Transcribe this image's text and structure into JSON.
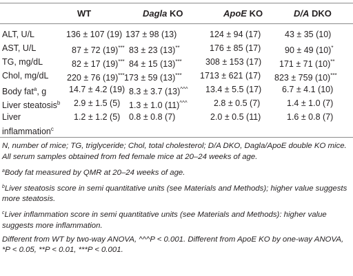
{
  "table": {
    "headers": {
      "wt": "WT",
      "dagla_name": "Dagla",
      "dagla_suffix": " KO",
      "apoe_name": "ApoE",
      "apoe_suffix": " KO",
      "dko_name": "D/A",
      "dko_suffix": " DKO"
    },
    "rows": [
      {
        "label": "ALT, U/L",
        "label_sup": "",
        "wt": "136 ± 107 (19)",
        "wt_sup": "",
        "dagla": "137 ± 98 (13)",
        "dagla_sup": "",
        "apoe": "124 ± 94 (17)",
        "apoe_sup": "",
        "dko": "43 ± 35 (10)",
        "dko_sup": ""
      },
      {
        "label": "AST, U/L",
        "label_sup": "",
        "wt": "87 ± 72 (19)",
        "wt_sup": "***",
        "dagla": "83 ± 23 (13)",
        "dagla_sup": "**",
        "apoe": "176 ± 85 (17)",
        "apoe_sup": "",
        "dko": "90 ± 49 (10)",
        "dko_sup": "*"
      },
      {
        "label": "TG, mg/dL",
        "label_sup": "",
        "wt": "82 ± 17 (19)",
        "wt_sup": "***",
        "dagla": "84 ± 15 (13)",
        "dagla_sup": "***",
        "apoe": "308 ± 153 (17)",
        "apoe_sup": "",
        "dko": "171 ± 71 (10)",
        "dko_sup": "**"
      },
      {
        "label": "Chol, mg/dL",
        "label_sup": "",
        "wt": "220 ± 76 (19)",
        "wt_sup": "***",
        "dagla": "173 ± 59 (13)",
        "dagla_sup": "***",
        "apoe": "1713 ± 621 (17)",
        "apoe_sup": "",
        "dko": "823 ± 759 (10)",
        "dko_sup": "***"
      },
      {
        "label": "Body fat",
        "label_sup": "a",
        "label_suffix": ", g",
        "wt": "14.7 ± 4.2 (19)",
        "wt_sup": "",
        "dagla": "8.3 ± 3.7 (13)",
        "dagla_sup": "^^^",
        "apoe": "13.4 ± 5.5 (17)",
        "apoe_sup": "",
        "dko": "6.7 ± 4.1 (10)",
        "dko_sup": ""
      },
      {
        "label": "Liver steatosis",
        "label_sup": "b",
        "wt": "2.9 ± 1.5 (5)",
        "wt_sup": "",
        "dagla": "1.3 ± 1.0 (11)",
        "dagla_sup": "^^^",
        "apoe": "2.8 ± 0.5 (7)",
        "apoe_sup": "",
        "dko": "1.4 ± 1.0 (7)",
        "dko_sup": ""
      },
      {
        "label": "Liver inflammation",
        "label_sup": "c",
        "wt": "1.2 ± 1.2 (5)",
        "wt_sup": "",
        "dagla": "0.8 ± 0.8 (7)",
        "dagla_sup": "",
        "apoe": "2.0 ± 0.5 (11)",
        "apoe_sup": "",
        "dko": "1.6 ± 0.8 (7)",
        "dko_sup": ""
      }
    ]
  },
  "notes": {
    "abbrev": "N, number of mice; TG, triglyceride; Chol, total cholesterol; D/A DKO, Dagla/ApoE double KO mice. All serum samples obtained from fed female mice at 20–24 weeks of age.",
    "a_mark": "a",
    "a_text": "Body fat measured by QMR at 20–24 weeks of age.",
    "b_mark": "b",
    "b_text": "Liver steatosis score in semi quantitative units (see Materials and Methods); higher value suggests more steatosis.",
    "c_mark": "c",
    "c_text": "Liver inflammation score in semi quantitative units (see Materials and Methods): higher value suggests more inflammation.",
    "stats": "Different from WT by two-way ANOVA, ^^^P < 0.001. Different from ApoE KO by one-way ANOVA, *P < 0.05, **P < 0.01, ***P < 0.001."
  }
}
